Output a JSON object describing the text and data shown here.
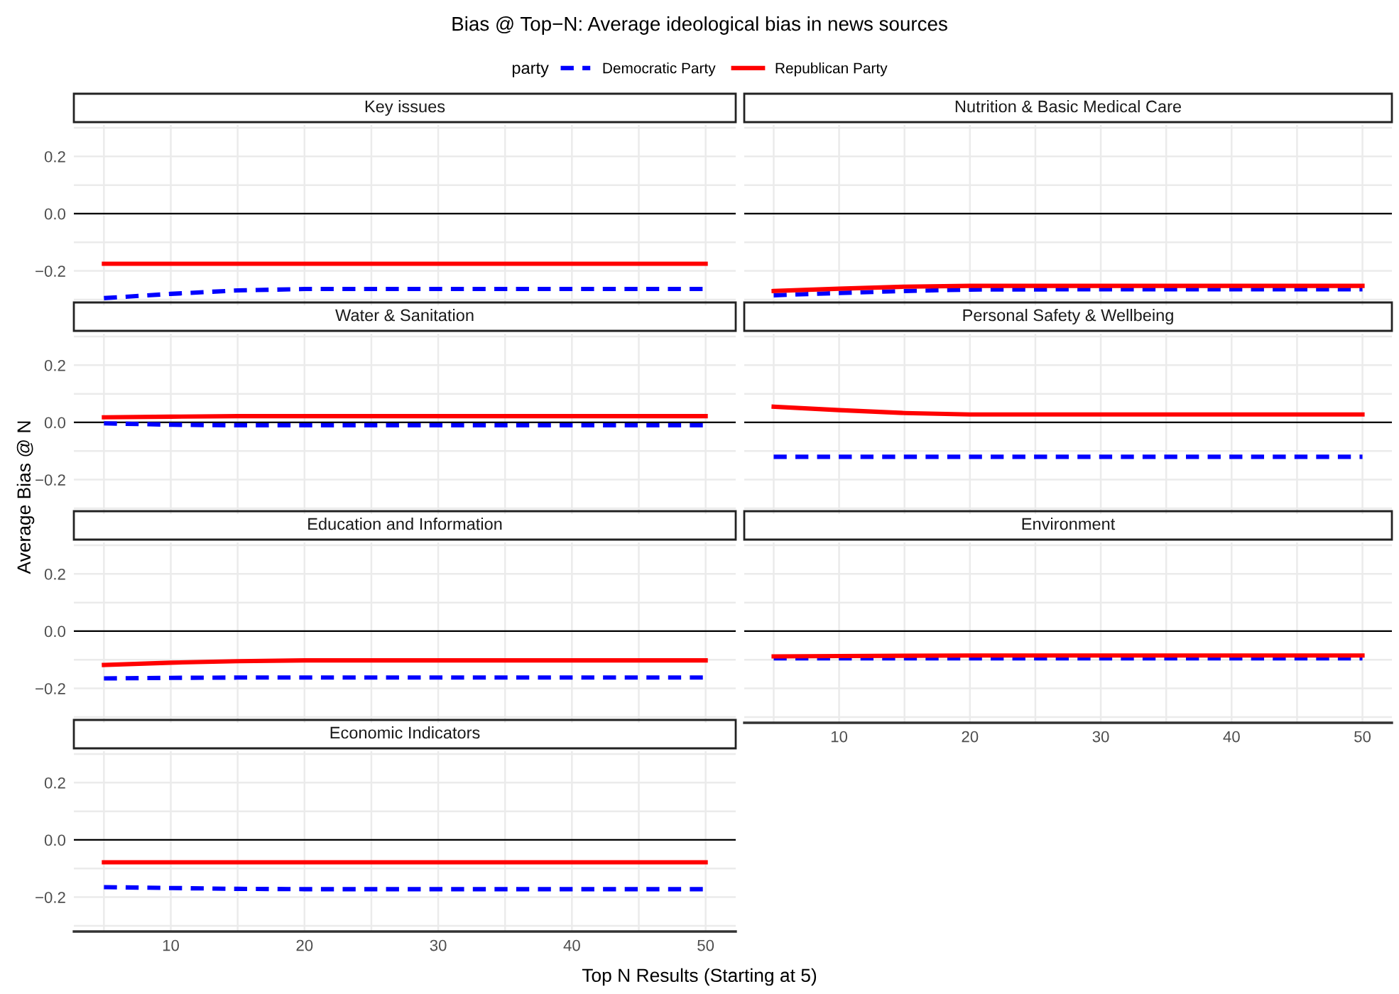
{
  "chart_data": [
    {
      "type": "line",
      "title": "Key issues",
      "annotations": [
        "Bias @ Top−N: Average ideological bias in news sources"
      ],
      "legend": "top",
      "legend_title": "party",
      "xlim": [
        2.75,
        52.25
      ],
      "ylim": [
        -0.32,
        0.31
      ],
      "xticks": [
        {
          "value": 5,
          "label": null
        },
        10,
        {
          "value": 15,
          "label": null
        },
        20,
        {
          "value": 25,
          "label": null
        },
        30,
        {
          "value": 35,
          "label": null
        },
        40,
        {
          "value": 45,
          "label": null
        },
        50
      ],
      "yticks": [
        {
          "value": -0.3,
          "label": null
        },
        {
          "value": -0.2,
          "label": "−0.2"
        },
        {
          "value": -0.1,
          "label": null
        },
        {
          "value": 0,
          "label": "0.0"
        },
        {
          "value": 0.1,
          "label": null
        },
        {
          "value": 0.2,
          "label": "0.2"
        },
        {
          "value": 0.3,
          "label": null
        }
      ],
      "tick_labels": "y",
      "grid": true,
      "ref_lines": [
        {
          "axis": "y",
          "value": 0,
          "color": "#000000"
        }
      ],
      "x": [
        5,
        10,
        15,
        20,
        30,
        40,
        50
      ],
      "series": [
        {
          "name": "Democratic Party",
          "color": "#0000ff",
          "line_style": "dashed",
          "values": [
            -0.295,
            -0.28,
            -0.268,
            -0.263,
            -0.263,
            -0.263,
            -0.263
          ]
        },
        {
          "name": "Republican Party",
          "color": "#ff0000",
          "line_style": "solid",
          "values": [
            -0.175,
            -0.175,
            -0.175,
            -0.175,
            -0.175,
            -0.175,
            -0.175
          ]
        }
      ]
    },
    {
      "type": "line",
      "title": "Nutrition & Basic Medical Care",
      "xlim": [
        2.75,
        52.25
      ],
      "ylim": [
        -0.32,
        0.31
      ],
      "xticks": [
        {
          "value": 5,
          "label": null
        },
        10,
        {
          "value": 15,
          "label": null
        },
        20,
        {
          "value": 25,
          "label": null
        },
        30,
        {
          "value": 35,
          "label": null
        },
        40,
        {
          "value": 45,
          "label": null
        },
        50
      ],
      "yticks": [
        {
          "value": -0.3,
          "label": null
        },
        {
          "value": -0.2,
          "label": "−0.2"
        },
        {
          "value": -0.1,
          "label": null
        },
        {
          "value": 0,
          "label": "0.0"
        },
        {
          "value": 0.1,
          "label": null
        },
        {
          "value": 0.2,
          "label": "0.2"
        },
        {
          "value": 0.3,
          "label": null
        }
      ],
      "tick_labels": false,
      "grid": true,
      "ref_lines": [
        {
          "axis": "y",
          "value": 0,
          "color": "#000000"
        }
      ],
      "x": [
        5,
        10,
        15,
        20,
        30,
        40,
        50
      ],
      "series": [
        {
          "name": "Democratic Party",
          "color": "#0000ff",
          "line_style": "dashed",
          "values": [
            -0.285,
            -0.277,
            -0.27,
            -0.265,
            -0.264,
            -0.264,
            -0.264
          ]
        },
        {
          "name": "Republican Party",
          "color": "#ff0000",
          "line_style": "solid",
          "values": [
            -0.27,
            -0.262,
            -0.255,
            -0.252,
            -0.252,
            -0.252,
            -0.252
          ]
        }
      ]
    },
    {
      "type": "line",
      "title": "Water & Sanitation",
      "ylabel": "Average Bias @ N",
      "xlim": [
        2.75,
        52.25
      ],
      "ylim": [
        -0.32,
        0.31
      ],
      "xticks": [
        {
          "value": 5,
          "label": null
        },
        10,
        {
          "value": 15,
          "label": null
        },
        20,
        {
          "value": 25,
          "label": null
        },
        30,
        {
          "value": 35,
          "label": null
        },
        40,
        {
          "value": 45,
          "label": null
        },
        50
      ],
      "yticks": [
        {
          "value": -0.3,
          "label": null
        },
        {
          "value": -0.2,
          "label": "−0.2"
        },
        {
          "value": -0.1,
          "label": null
        },
        {
          "value": 0,
          "label": "0.0"
        },
        {
          "value": 0.1,
          "label": null
        },
        {
          "value": 0.2,
          "label": "0.2"
        },
        {
          "value": 0.3,
          "label": null
        }
      ],
      "tick_labels": "y",
      "grid": true,
      "ref_lines": [
        {
          "axis": "y",
          "value": 0,
          "color": "#000000"
        }
      ],
      "x": [
        5,
        10,
        15,
        20,
        30,
        40,
        50
      ],
      "series": [
        {
          "name": "Democratic Party",
          "color": "#0000ff",
          "line_style": "dashed",
          "values": [
            -0.003,
            -0.008,
            -0.01,
            -0.01,
            -0.01,
            -0.01,
            -0.01
          ]
        },
        {
          "name": "Republican Party",
          "color": "#ff0000",
          "line_style": "solid",
          "values": [
            0.018,
            0.02,
            0.022,
            0.022,
            0.022,
            0.022,
            0.022
          ]
        }
      ]
    },
    {
      "type": "line",
      "title": "Personal Safety & Wellbeing",
      "xlim": [
        2.75,
        52.25
      ],
      "ylim": [
        -0.32,
        0.31
      ],
      "xticks": [
        {
          "value": 5,
          "label": null
        },
        10,
        {
          "value": 15,
          "label": null
        },
        20,
        {
          "value": 25,
          "label": null
        },
        30,
        {
          "value": 35,
          "label": null
        },
        40,
        {
          "value": 45,
          "label": null
        },
        50
      ],
      "yticks": [
        {
          "value": -0.3,
          "label": null
        },
        {
          "value": -0.2,
          "label": "−0.2"
        },
        {
          "value": -0.1,
          "label": null
        },
        {
          "value": 0,
          "label": "0.0"
        },
        {
          "value": 0.1,
          "label": null
        },
        {
          "value": 0.2,
          "label": "0.2"
        },
        {
          "value": 0.3,
          "label": null
        }
      ],
      "tick_labels": false,
      "grid": true,
      "ref_lines": [
        {
          "axis": "y",
          "value": 0,
          "color": "#000000"
        }
      ],
      "x": [
        5,
        10,
        15,
        20,
        30,
        40,
        50
      ],
      "series": [
        {
          "name": "Democratic Party",
          "color": "#0000ff",
          "line_style": "dashed",
          "values": [
            -0.12,
            -0.12,
            -0.12,
            -0.12,
            -0.12,
            -0.12,
            -0.12
          ]
        },
        {
          "name": "Republican Party",
          "color": "#ff0000",
          "line_style": "solid",
          "values": [
            0.055,
            0.043,
            0.033,
            0.028,
            0.028,
            0.028,
            0.028
          ]
        }
      ]
    },
    {
      "type": "line",
      "title": "Education and Information",
      "xlim": [
        2.75,
        52.25
      ],
      "ylim": [
        -0.32,
        0.31
      ],
      "xticks": [
        {
          "value": 5,
          "label": null
        },
        10,
        {
          "value": 15,
          "label": null
        },
        20,
        {
          "value": 25,
          "label": null
        },
        30,
        {
          "value": 35,
          "label": null
        },
        40,
        {
          "value": 45,
          "label": null
        },
        50
      ],
      "yticks": [
        {
          "value": -0.3,
          "label": null
        },
        {
          "value": -0.2,
          "label": "−0.2"
        },
        {
          "value": -0.1,
          "label": null
        },
        {
          "value": 0,
          "label": "0.0"
        },
        {
          "value": 0.1,
          "label": null
        },
        {
          "value": 0.2,
          "label": "0.2"
        },
        {
          "value": 0.3,
          "label": null
        }
      ],
      "tick_labels": "y",
      "grid": true,
      "ref_lines": [
        {
          "axis": "y",
          "value": 0,
          "color": "#000000"
        }
      ],
      "x": [
        5,
        10,
        15,
        20,
        30,
        40,
        50
      ],
      "series": [
        {
          "name": "Democratic Party",
          "color": "#0000ff",
          "line_style": "dashed",
          "values": [
            -0.165,
            -0.163,
            -0.162,
            -0.162,
            -0.162,
            -0.162,
            -0.162
          ]
        },
        {
          "name": "Republican Party",
          "color": "#ff0000",
          "line_style": "solid",
          "values": [
            -0.118,
            -0.11,
            -0.105,
            -0.102,
            -0.102,
            -0.102,
            -0.102
          ]
        }
      ]
    },
    {
      "type": "line",
      "title": "Environment",
      "xlim": [
        2.75,
        52.25
      ],
      "ylim": [
        -0.32,
        0.31
      ],
      "xticks": [
        {
          "value": 5,
          "label": null
        },
        10,
        {
          "value": 15,
          "label": null
        },
        20,
        {
          "value": 25,
          "label": null
        },
        30,
        {
          "value": 35,
          "label": null
        },
        40,
        {
          "value": 45,
          "label": null
        },
        50
      ],
      "yticks": [
        {
          "value": -0.3,
          "label": null
        },
        {
          "value": -0.2,
          "label": "−0.2"
        },
        {
          "value": -0.1,
          "label": null
        },
        {
          "value": 0,
          "label": "0.0"
        },
        {
          "value": 0.1,
          "label": null
        },
        {
          "value": 0.2,
          "label": "0.2"
        },
        {
          "value": 0.3,
          "label": null
        }
      ],
      "tick_labels": "x",
      "grid": true,
      "ref_lines": [
        {
          "axis": "y",
          "value": 0,
          "color": "#000000"
        }
      ],
      "x": [
        5,
        10,
        15,
        20,
        30,
        40,
        50
      ],
      "series": [
        {
          "name": "Democratic Party",
          "color": "#0000ff",
          "line_style": "dashed",
          "values": [
            -0.095,
            -0.095,
            -0.095,
            -0.095,
            -0.095,
            -0.095,
            -0.095
          ]
        },
        {
          "name": "Republican Party",
          "color": "#ff0000",
          "line_style": "solid",
          "values": [
            -0.088,
            -0.087,
            -0.086,
            -0.085,
            -0.085,
            -0.085,
            -0.085
          ]
        }
      ]
    },
    {
      "type": "line",
      "title": "Economic Indicators",
      "xlabel": "Top N Results (Starting at 5)",
      "xlim": [
        2.75,
        52.25
      ],
      "ylim": [
        -0.32,
        0.31
      ],
      "xticks": [
        {
          "value": 5,
          "label": null
        },
        10,
        {
          "value": 15,
          "label": null
        },
        20,
        {
          "value": 25,
          "label": null
        },
        30,
        {
          "value": 35,
          "label": null
        },
        40,
        {
          "value": 45,
          "label": null
        },
        50
      ],
      "yticks": [
        {
          "value": -0.3,
          "label": null
        },
        {
          "value": -0.2,
          "label": "−0.2"
        },
        {
          "value": -0.1,
          "label": null
        },
        {
          "value": 0,
          "label": "0.0"
        },
        {
          "value": 0.1,
          "label": null
        },
        {
          "value": 0.2,
          "label": "0.2"
        },
        {
          "value": 0.3,
          "label": null
        }
      ],
      "grid": true,
      "ref_lines": [
        {
          "axis": "y",
          "value": 0,
          "color": "#000000"
        }
      ],
      "x": [
        5,
        10,
        15,
        20,
        30,
        40,
        50
      ],
      "series": [
        {
          "name": "Democratic Party",
          "color": "#0000ff",
          "line_style": "dashed",
          "values": [
            -0.165,
            -0.168,
            -0.171,
            -0.172,
            -0.172,
            -0.172,
            -0.172
          ]
        },
        {
          "name": "Republican Party",
          "color": "#ff0000",
          "line_style": "solid",
          "values": [
            -0.078,
            -0.078,
            -0.078,
            -0.078,
            -0.078,
            -0.078,
            -0.078
          ]
        }
      ]
    }
  ]
}
